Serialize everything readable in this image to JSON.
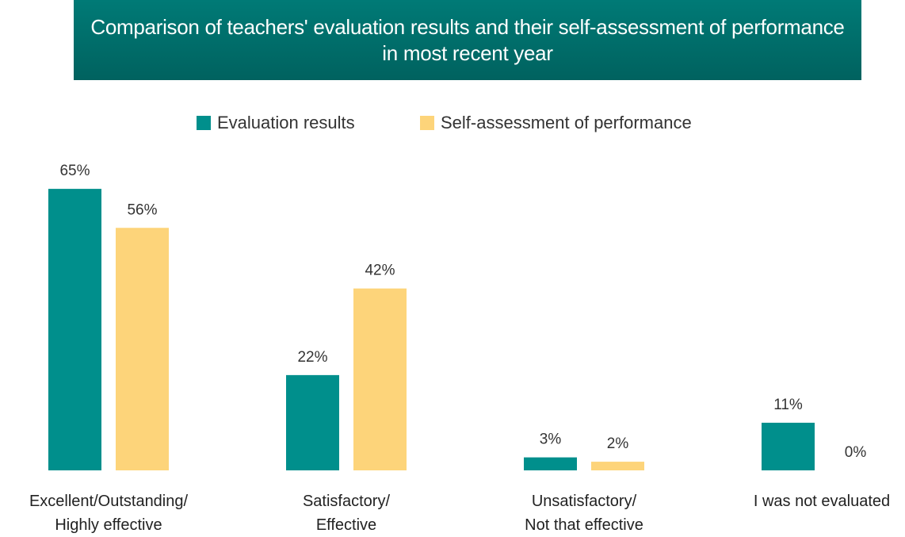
{
  "chart_data": {
    "type": "bar",
    "title": "Comparison of teachers' evaluation results and their self-assessment of performance in most recent year",
    "categories": [
      "Excellent/Outstanding/\nHighly effective",
      "Satisfactory/\nEffective",
      "Unsatisfactory/\nNot that effective",
      "I was not evaluated"
    ],
    "series": [
      {
        "name": "Evaluation results",
        "color": "#008f8c",
        "values": [
          65,
          22,
          3,
          11
        ],
        "value_labels": [
          "65%",
          "22%",
          "3%",
          "11%"
        ]
      },
      {
        "name": "Self-assessment of performance",
        "color": "#fdd47a",
        "values": [
          56,
          42,
          2,
          0
        ],
        "value_labels": [
          "56%",
          "42%",
          "2%",
          "0%"
        ]
      }
    ],
    "legend": "top"
  }
}
